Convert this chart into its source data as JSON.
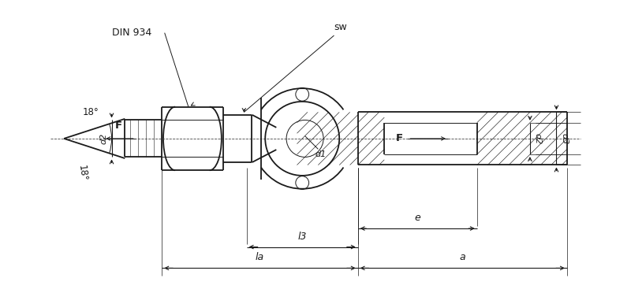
{
  "bg_color": "#ffffff",
  "line_color": "#1a1a1a",
  "fig_width": 8.0,
  "fig_height": 3.72,
  "dpi": 100,
  "annotations": {
    "DIN_934": "DIN 934",
    "sw": "sw",
    "F_left": "F",
    "F_right": "F",
    "d1": "d1",
    "d2_left": "d2",
    "d2_right": "d2",
    "d3": "d3",
    "l3": "l3",
    "la": "la",
    "a": "a",
    "e": "e",
    "angle_top": "18°",
    "angle_bot": "18°"
  }
}
